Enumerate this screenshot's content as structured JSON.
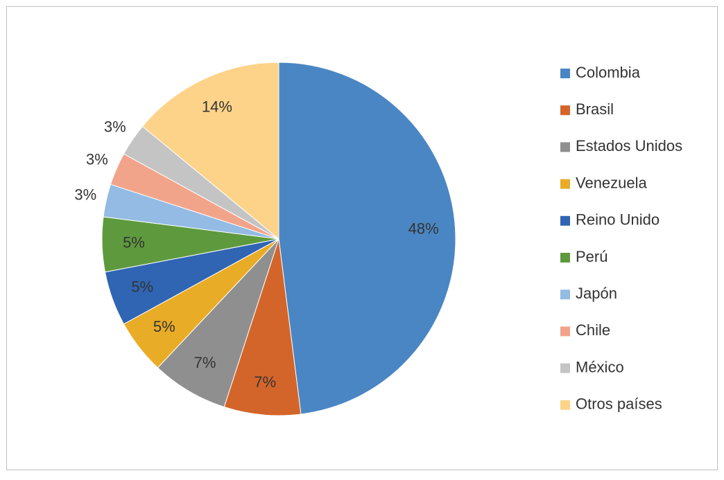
{
  "chart_data": {
    "type": "pie",
    "categories": [
      "Colombia",
      "Brasil",
      "Estados Unidos",
      "Venezuela",
      "Reino Unido",
      "Perú",
      "Japón",
      "Chile",
      "México",
      "Otros países"
    ],
    "values": [
      48,
      7,
      7,
      5,
      5,
      5,
      3,
      3,
      3,
      14
    ],
    "value_labels": [
      "48%",
      "7%",
      "7%",
      "5%",
      "5%",
      "5%",
      "3%",
      "3%",
      "3%",
      "14%"
    ],
    "colors": [
      "#4a86c4",
      "#d4652a",
      "#8f8f8f",
      "#e9ac26",
      "#3065b3",
      "#5e9a3d",
      "#93bbe3",
      "#f2a48a",
      "#c4c4c4",
      "#fdd38a"
    ],
    "legend": "right"
  }
}
